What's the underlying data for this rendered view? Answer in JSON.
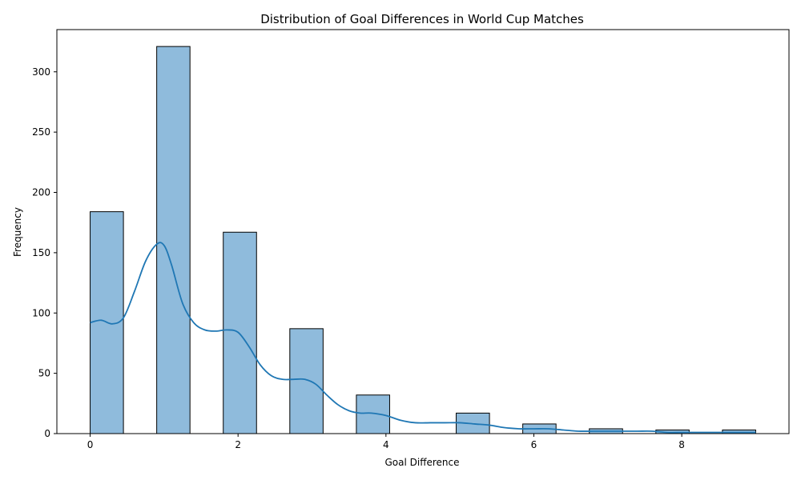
{
  "chart_data": {
    "type": "bar",
    "title": "Distribution of Goal Differences in World Cup Matches",
    "xlabel": "Goal Difference",
    "ylabel": "Frequency",
    "xlim": [
      -0.45,
      9.45
    ],
    "ylim": [
      0,
      335
    ],
    "xticks": [
      0,
      2,
      4,
      6,
      8
    ],
    "yticks": [
      0,
      50,
      100,
      150,
      200,
      250,
      300
    ],
    "grid": false,
    "bins": [
      {
        "x0": 0.0,
        "x1": 0.45,
        "value": 184
      },
      {
        "x0": 0.9,
        "x1": 1.35,
        "value": 321
      },
      {
        "x0": 1.8,
        "x1": 2.25,
        "value": 167
      },
      {
        "x0": 2.7,
        "x1": 3.15,
        "value": 87
      },
      {
        "x0": 3.6,
        "x1": 4.05,
        "value": 32
      },
      {
        "x0": 4.05,
        "x1": 4.5,
        "value": 0
      },
      {
        "x0": 4.95,
        "x1": 5.4,
        "value": 17
      },
      {
        "x0": 5.85,
        "x1": 6.3,
        "value": 8
      },
      {
        "x0": 6.75,
        "x1": 7.2,
        "value": 4
      },
      {
        "x0": 7.65,
        "x1": 8.1,
        "value": 3
      },
      {
        "x0": 8.55,
        "x1": 9.0,
        "value": 3
      }
    ],
    "kde": {
      "x": [
        0,
        0.15,
        0.3,
        0.45,
        0.6,
        0.75,
        0.9,
        1.0,
        1.1,
        1.25,
        1.4,
        1.55,
        1.7,
        1.85,
        2.0,
        2.15,
        2.3,
        2.45,
        2.6,
        2.75,
        2.9,
        3.05,
        3.2,
        3.35,
        3.5,
        3.65,
        3.8,
        4.0,
        4.2,
        4.4,
        4.6,
        4.8,
        5.0,
        5.2,
        5.4,
        5.6,
        5.8,
        6.0,
        6.2,
        6.4,
        6.6,
        6.8,
        7.0,
        7.2,
        7.4,
        7.6,
        7.8,
        8.0,
        8.2,
        8.4,
        8.6,
        8.8,
        9.0
      ],
      "y": [
        92,
        94,
        91,
        96,
        118,
        143,
        157,
        156,
        140,
        108,
        92,
        86,
        85,
        86,
        84,
        72,
        57,
        48,
        45,
        45,
        45,
        41,
        32,
        24,
        19,
        17,
        17,
        15,
        11,
        9,
        9,
        9,
        9,
        8,
        7,
        5,
        4,
        4,
        4,
        3,
        2,
        2,
        2,
        2,
        2,
        2,
        1,
        1,
        1,
        1,
        1,
        1,
        1
      ]
    },
    "colors": {
      "bar_fill": "#8fbbdc",
      "bar_edge": "#000000",
      "kde_line": "#1f77b4"
    }
  }
}
